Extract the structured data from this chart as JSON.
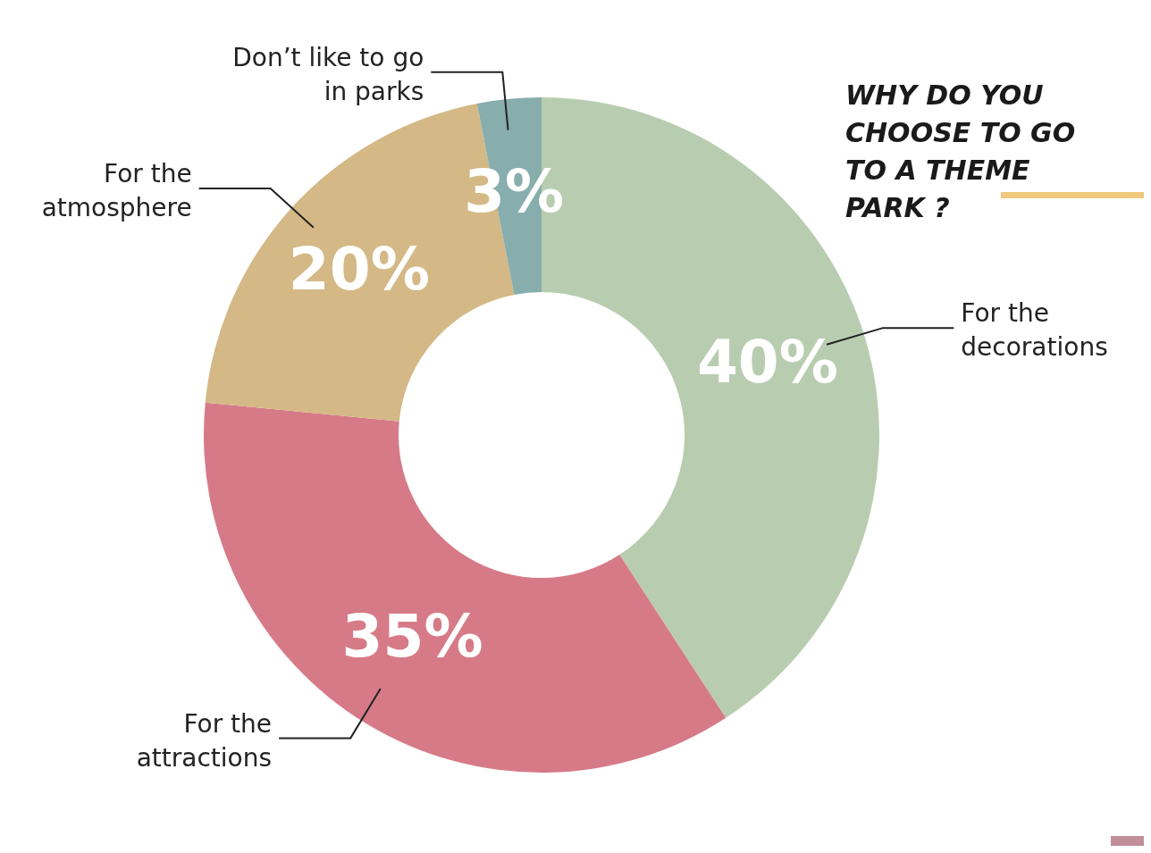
{
  "chart_data": {
    "type": "donut",
    "title": "WHY DO YOU CHOOSE TO GO TO A THEME PARK ?",
    "categories": [
      "For the decorations",
      "For the attractions",
      "For the atmosphere",
      "Don’t like to go in parks"
    ],
    "values": [
      40,
      35,
      20,
      3
    ],
    "value_labels": [
      "40%",
      "35%",
      "20%",
      "3%"
    ],
    "colors": [
      "#b8cdb0",
      "#d77a87",
      "#d4b886",
      "#88adad"
    ]
  }
}
